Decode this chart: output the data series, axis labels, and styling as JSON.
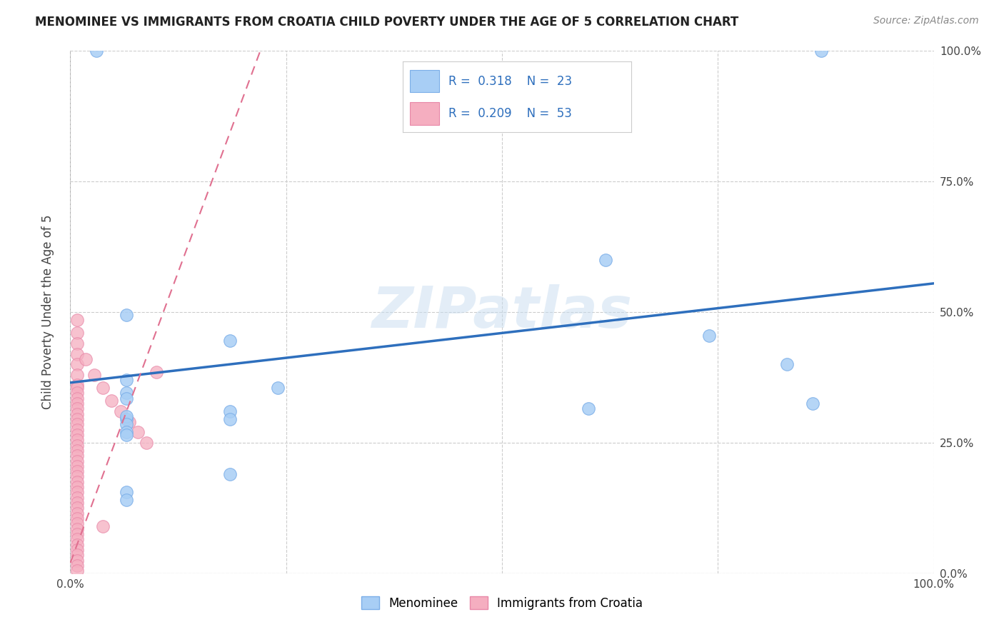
{
  "title": "MENOMINEE VS IMMIGRANTS FROM CROATIA CHILD POVERTY UNDER THE AGE OF 5 CORRELATION CHART",
  "source": "Source: ZipAtlas.com",
  "ylabel": "Child Poverty Under the Age of 5",
  "xlim": [
    0,
    1.0
  ],
  "ylim": [
    0,
    1.0
  ],
  "watermark": "ZIPatlas",
  "menominee_R": 0.318,
  "menominee_N": 23,
  "croatia_R": 0.209,
  "croatia_N": 53,
  "menominee_color": "#a8cef5",
  "croatia_color": "#f5aec0",
  "menominee_edge_color": "#7baee8",
  "croatia_edge_color": "#e888a8",
  "menominee_line_color": "#2e6fbd",
  "croatia_line_color": "#e07090",
  "menominee_scatter": [
    [
      0.03,
      1.0
    ],
    [
      0.87,
      1.0
    ],
    [
      0.62,
      0.6
    ],
    [
      0.74,
      0.455
    ],
    [
      0.83,
      0.4
    ],
    [
      0.6,
      0.315
    ],
    [
      0.86,
      0.325
    ],
    [
      0.185,
      0.445
    ],
    [
      0.065,
      0.495
    ],
    [
      0.065,
      0.37
    ],
    [
      0.065,
      0.345
    ],
    [
      0.065,
      0.335
    ],
    [
      0.24,
      0.355
    ],
    [
      0.185,
      0.31
    ],
    [
      0.185,
      0.295
    ],
    [
      0.065,
      0.295
    ],
    [
      0.065,
      0.3
    ],
    [
      0.065,
      0.285
    ],
    [
      0.065,
      0.27
    ],
    [
      0.065,
      0.265
    ],
    [
      0.185,
      0.19
    ],
    [
      0.065,
      0.155
    ],
    [
      0.065,
      0.14
    ]
  ],
  "croatia_scatter": [
    [
      0.008,
      0.485
    ],
    [
      0.008,
      0.46
    ],
    [
      0.008,
      0.44
    ],
    [
      0.008,
      0.42
    ],
    [
      0.008,
      0.4
    ],
    [
      0.008,
      0.38
    ],
    [
      0.008,
      0.36
    ],
    [
      0.008,
      0.355
    ],
    [
      0.008,
      0.345
    ],
    [
      0.008,
      0.335
    ],
    [
      0.008,
      0.325
    ],
    [
      0.008,
      0.315
    ],
    [
      0.008,
      0.305
    ],
    [
      0.008,
      0.295
    ],
    [
      0.008,
      0.285
    ],
    [
      0.008,
      0.275
    ],
    [
      0.008,
      0.265
    ],
    [
      0.008,
      0.255
    ],
    [
      0.008,
      0.245
    ],
    [
      0.008,
      0.235
    ],
    [
      0.008,
      0.225
    ],
    [
      0.008,
      0.215
    ],
    [
      0.008,
      0.205
    ],
    [
      0.008,
      0.195
    ],
    [
      0.008,
      0.185
    ],
    [
      0.008,
      0.175
    ],
    [
      0.008,
      0.165
    ],
    [
      0.008,
      0.155
    ],
    [
      0.008,
      0.145
    ],
    [
      0.008,
      0.135
    ],
    [
      0.008,
      0.125
    ],
    [
      0.008,
      0.115
    ],
    [
      0.008,
      0.105
    ],
    [
      0.008,
      0.095
    ],
    [
      0.008,
      0.085
    ],
    [
      0.008,
      0.075
    ],
    [
      0.008,
      0.065
    ],
    [
      0.008,
      0.055
    ],
    [
      0.008,
      0.045
    ],
    [
      0.008,
      0.035
    ],
    [
      0.008,
      0.025
    ],
    [
      0.008,
      0.015
    ],
    [
      0.008,
      0.005
    ],
    [
      0.018,
      0.41
    ],
    [
      0.028,
      0.38
    ],
    [
      0.038,
      0.355
    ],
    [
      0.048,
      0.33
    ],
    [
      0.058,
      0.31
    ],
    [
      0.068,
      0.29
    ],
    [
      0.078,
      0.27
    ],
    [
      0.088,
      0.25
    ],
    [
      0.1,
      0.385
    ],
    [
      0.038,
      0.09
    ]
  ],
  "menominee_line": [
    0.0,
    0.365,
    1.0,
    0.555
  ],
  "croatia_line": [
    0.0,
    0.02,
    0.22,
    1.0
  ],
  "background_color": "#ffffff",
  "grid_color": "#cccccc"
}
